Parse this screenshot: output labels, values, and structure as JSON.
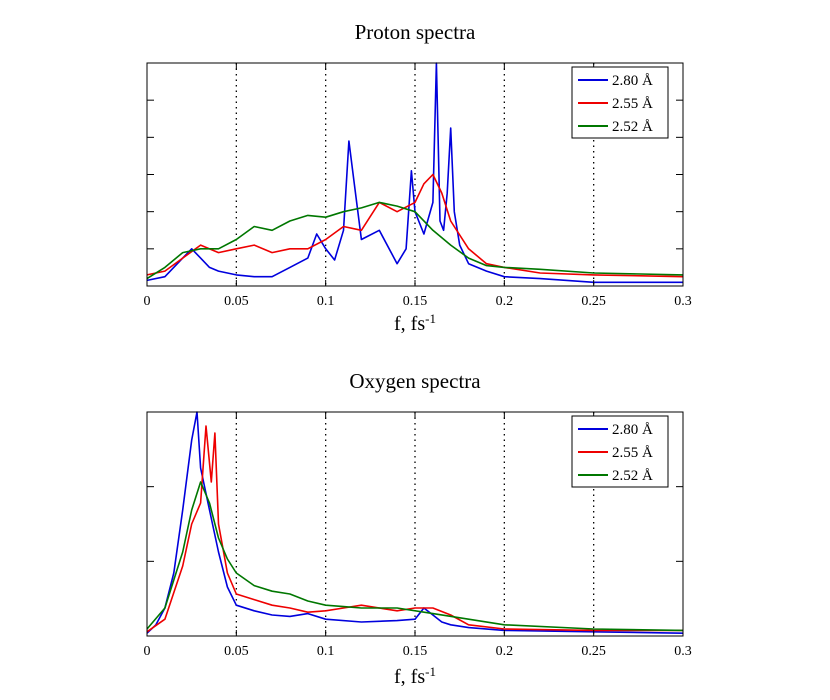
{
  "chart_data": [
    {
      "type": "line",
      "title": "Proton spectra",
      "xlabel_main": "f,  fs",
      "xlabel_sup": "-1",
      "xlim": [
        0,
        0.3
      ],
      "ylim": [
        0,
        1.2
      ],
      "xticks": [
        "0",
        "0.05",
        "0.1",
        "0.15",
        "0.2",
        "0.25",
        "0.3"
      ],
      "grid": "vertical dotted at x = 0.05, 0.1, 0.15, 0.2, 0.25",
      "legend_position": "top-right",
      "series": [
        {
          "name": "2.80 Å",
          "color": "#0000dd",
          "x": [
            0,
            0.01,
            0.02,
            0.025,
            0.03,
            0.035,
            0.04,
            0.05,
            0.06,
            0.07,
            0.08,
            0.09,
            0.095,
            0.1,
            0.105,
            0.11,
            0.113,
            0.116,
            0.12,
            0.13,
            0.14,
            0.145,
            0.148,
            0.15,
            0.155,
            0.16,
            0.162,
            0.164,
            0.166,
            0.168,
            0.17,
            0.172,
            0.175,
            0.18,
            0.19,
            0.2,
            0.22,
            0.25,
            0.3
          ],
          "y": [
            0.03,
            0.05,
            0.15,
            0.2,
            0.15,
            0.1,
            0.08,
            0.06,
            0.05,
            0.05,
            0.1,
            0.15,
            0.28,
            0.2,
            0.14,
            0.3,
            0.78,
            0.55,
            0.25,
            0.3,
            0.12,
            0.2,
            0.62,
            0.4,
            0.28,
            0.45,
            1.2,
            0.35,
            0.3,
            0.5,
            0.85,
            0.4,
            0.22,
            0.12,
            0.08,
            0.05,
            0.04,
            0.02,
            0.02
          ]
        },
        {
          "name": "2.55 Å",
          "color": "#ee0000",
          "x": [
            0,
            0.01,
            0.02,
            0.03,
            0.04,
            0.05,
            0.06,
            0.07,
            0.08,
            0.09,
            0.1,
            0.11,
            0.12,
            0.13,
            0.14,
            0.15,
            0.155,
            0.16,
            0.165,
            0.17,
            0.18,
            0.19,
            0.2,
            0.22,
            0.25,
            0.3
          ],
          "y": [
            0.06,
            0.08,
            0.15,
            0.22,
            0.18,
            0.2,
            0.22,
            0.18,
            0.2,
            0.2,
            0.25,
            0.32,
            0.3,
            0.45,
            0.4,
            0.45,
            0.55,
            0.6,
            0.5,
            0.35,
            0.2,
            0.12,
            0.1,
            0.07,
            0.06,
            0.05
          ]
        },
        {
          "name": "2.52 Å",
          "color": "#007700",
          "x": [
            0,
            0.01,
            0.02,
            0.03,
            0.04,
            0.05,
            0.06,
            0.07,
            0.08,
            0.09,
            0.1,
            0.11,
            0.12,
            0.13,
            0.14,
            0.15,
            0.16,
            0.17,
            0.18,
            0.19,
            0.2,
            0.22,
            0.25,
            0.3
          ],
          "y": [
            0.04,
            0.1,
            0.18,
            0.2,
            0.2,
            0.25,
            0.32,
            0.3,
            0.35,
            0.38,
            0.37,
            0.4,
            0.42,
            0.45,
            0.43,
            0.4,
            0.3,
            0.22,
            0.15,
            0.11,
            0.1,
            0.09,
            0.07,
            0.06
          ]
        }
      ]
    },
    {
      "type": "line",
      "title": "Oxygen spectra",
      "xlabel_main": "f,  fs",
      "xlabel_sup": "-1",
      "xlim": [
        0,
        0.3
      ],
      "ylim": [
        0,
        1.6
      ],
      "xticks": [
        "0",
        "0.05",
        "0.1",
        "0.15",
        "0.2",
        "0.25",
        "0.3"
      ],
      "grid": "vertical dotted at x = 0.05, 0.1, 0.15, 0.2, 0.25",
      "legend_position": "top-right",
      "series": [
        {
          "name": "2.80 Å",
          "color": "#0000dd",
          "x": [
            0,
            0.005,
            0.01,
            0.015,
            0.02,
            0.025,
            0.028,
            0.03,
            0.035,
            0.04,
            0.045,
            0.05,
            0.06,
            0.07,
            0.08,
            0.09,
            0.1,
            0.12,
            0.14,
            0.15,
            0.155,
            0.16,
            0.165,
            0.17,
            0.18,
            0.2,
            0.25,
            0.3
          ],
          "y": [
            0.02,
            0.08,
            0.2,
            0.45,
            0.9,
            1.4,
            1.6,
            1.2,
            0.9,
            0.6,
            0.35,
            0.22,
            0.18,
            0.15,
            0.14,
            0.16,
            0.12,
            0.1,
            0.11,
            0.12,
            0.2,
            0.15,
            0.1,
            0.08,
            0.06,
            0.04,
            0.03,
            0.02
          ]
        },
        {
          "name": "2.55 Å",
          "color": "#ee0000",
          "x": [
            0,
            0.01,
            0.02,
            0.025,
            0.03,
            0.033,
            0.036,
            0.038,
            0.04,
            0.045,
            0.05,
            0.06,
            0.07,
            0.08,
            0.09,
            0.1,
            0.11,
            0.12,
            0.14,
            0.15,
            0.16,
            0.17,
            0.18,
            0.2,
            0.25,
            0.3
          ],
          "y": [
            0.03,
            0.12,
            0.5,
            0.8,
            0.95,
            1.5,
            1.1,
            1.45,
            0.8,
            0.45,
            0.3,
            0.26,
            0.22,
            0.2,
            0.17,
            0.18,
            0.2,
            0.22,
            0.18,
            0.2,
            0.2,
            0.15,
            0.08,
            0.05,
            0.04,
            0.04
          ]
        },
        {
          "name": "2.52 Å",
          "color": "#007700",
          "x": [
            0,
            0.01,
            0.02,
            0.025,
            0.03,
            0.035,
            0.04,
            0.045,
            0.05,
            0.06,
            0.07,
            0.08,
            0.09,
            0.1,
            0.11,
            0.12,
            0.14,
            0.16,
            0.18,
            0.2,
            0.25,
            0.3
          ],
          "y": [
            0.05,
            0.2,
            0.6,
            0.9,
            1.1,
            0.95,
            0.7,
            0.55,
            0.45,
            0.36,
            0.32,
            0.3,
            0.25,
            0.22,
            0.21,
            0.2,
            0.2,
            0.16,
            0.12,
            0.08,
            0.05,
            0.04
          ]
        }
      ]
    }
  ]
}
